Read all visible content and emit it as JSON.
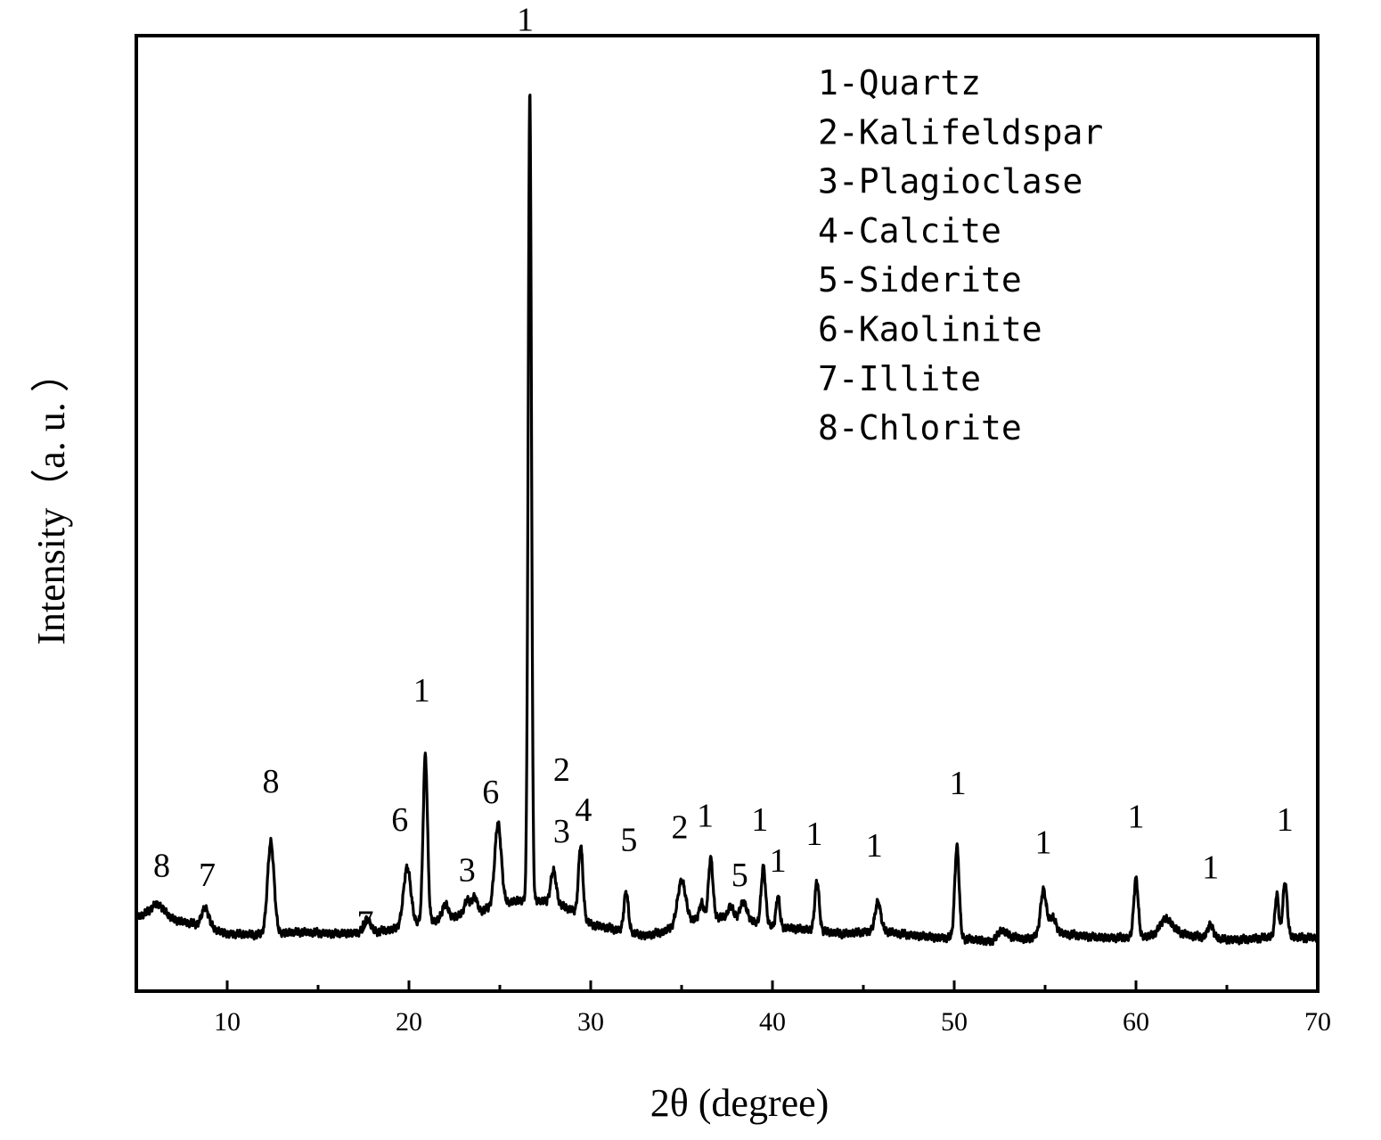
{
  "chart_data": {
    "type": "line",
    "title": "",
    "xlabel": "2θ (degree)",
    "ylabel": "Intensity（a. u. ）",
    "xlim": [
      5,
      70
    ],
    "ylim": [
      0,
      1000
    ],
    "x_ticks": [
      10,
      20,
      30,
      40,
      50,
      60,
      70
    ],
    "y_ticks_shown": false,
    "grid": false,
    "legend_position": "top-right",
    "legend": [
      "1-Quartz",
      "2-Kalifeldspar",
      "3-Plagioclase",
      "4-Calcite",
      "5-Siderite",
      "6-Kaolinite",
      "7-Illite",
      "8-Chlorite"
    ],
    "series": [
      {
        "name": "",
        "color": "#000000",
        "baseline": [
          [
            5,
            78
          ],
          [
            6,
            82
          ],
          [
            7,
            75
          ],
          [
            8,
            71
          ],
          [
            9,
            66
          ],
          [
            10,
            60
          ],
          [
            12,
            59
          ],
          [
            14,
            62
          ],
          [
            16,
            60
          ],
          [
            18,
            62
          ],
          [
            19,
            64
          ],
          [
            20,
            70
          ],
          [
            21,
            72
          ],
          [
            22,
            76
          ],
          [
            23,
            80
          ],
          [
            24,
            84
          ],
          [
            25,
            90
          ],
          [
            26,
            95
          ],
          [
            27,
            95
          ],
          [
            28,
            92
          ],
          [
            29,
            85
          ],
          [
            30,
            70
          ],
          [
            31,
            66
          ],
          [
            32,
            62
          ],
          [
            33,
            58
          ],
          [
            34,
            62
          ],
          [
            35,
            72
          ],
          [
            36,
            76
          ],
          [
            37,
            78
          ],
          [
            38,
            74
          ],
          [
            39,
            72
          ],
          [
            40,
            68
          ],
          [
            41,
            66
          ],
          [
            42,
            64
          ],
          [
            43,
            62
          ],
          [
            44,
            60
          ],
          [
            45,
            62
          ],
          [
            46,
            64
          ],
          [
            47,
            60
          ],
          [
            48,
            58
          ],
          [
            49,
            56
          ],
          [
            50,
            56
          ],
          [
            51,
            54
          ],
          [
            52,
            52
          ],
          [
            53,
            58
          ],
          [
            54,
            54
          ],
          [
            55,
            62
          ],
          [
            56,
            60
          ],
          [
            57,
            58
          ],
          [
            58,
            56
          ],
          [
            59,
            56
          ],
          [
            60,
            56
          ],
          [
            61,
            58
          ],
          [
            62,
            64
          ],
          [
            63,
            58
          ],
          [
            64,
            56
          ],
          [
            65,
            54
          ],
          [
            66,
            54
          ],
          [
            67,
            56
          ],
          [
            68,
            58
          ],
          [
            69,
            56
          ],
          [
            70,
            56
          ]
        ],
        "peaks": [
          {
            "x": 6.2,
            "height": 10,
            "width": 0.35
          },
          {
            "x": 8.8,
            "height": 20,
            "width": 0.2
          },
          {
            "x": 12.4,
            "height": 96,
            "width": 0.18
          },
          {
            "x": 17.7,
            "height": 14,
            "width": 0.18
          },
          {
            "x": 19.9,
            "height": 60,
            "width": 0.2
          },
          {
            "x": 20.9,
            "height": 175,
            "width": 0.12
          },
          {
            "x": 22.0,
            "height": 16,
            "width": 0.15
          },
          {
            "x": 23.2,
            "height": 14,
            "width": 0.15
          },
          {
            "x": 23.6,
            "height": 16,
            "width": 0.15
          },
          {
            "x": 24.9,
            "height": 86,
            "width": 0.18
          },
          {
            "x": 26.65,
            "height": 845,
            "width": 0.09
          },
          {
            "x": 27.95,
            "height": 34,
            "width": 0.15
          },
          {
            "x": 29.45,
            "height": 74,
            "width": 0.12
          },
          {
            "x": 31.95,
            "height": 42,
            "width": 0.12
          },
          {
            "x": 35.0,
            "height": 44,
            "width": 0.22
          },
          {
            "x": 36.1,
            "height": 16,
            "width": 0.12
          },
          {
            "x": 36.6,
            "height": 62,
            "width": 0.12
          },
          {
            "x": 37.7,
            "height": 14,
            "width": 0.15
          },
          {
            "x": 38.4,
            "height": 20,
            "width": 0.2
          },
          {
            "x": 39.5,
            "height": 60,
            "width": 0.12
          },
          {
            "x": 40.3,
            "height": 32,
            "width": 0.1
          },
          {
            "x": 42.45,
            "height": 52,
            "width": 0.12
          },
          {
            "x": 45.8,
            "height": 30,
            "width": 0.15
          },
          {
            "x": 50.15,
            "height": 96,
            "width": 0.12
          },
          {
            "x": 52.6,
            "height": 8,
            "width": 0.2
          },
          {
            "x": 54.9,
            "height": 44,
            "width": 0.15
          },
          {
            "x": 55.4,
            "height": 16,
            "width": 0.2
          },
          {
            "x": 60.0,
            "height": 62,
            "width": 0.12
          },
          {
            "x": 61.6,
            "height": 14,
            "width": 0.3
          },
          {
            "x": 64.1,
            "height": 14,
            "width": 0.15
          },
          {
            "x": 67.75,
            "height": 44,
            "width": 0.1
          },
          {
            "x": 68.2,
            "height": 56,
            "width": 0.12
          }
        ]
      }
    ],
    "annotations": [
      {
        "text": "8",
        "x": 6.4,
        "y": 120
      },
      {
        "text": "7",
        "x": 8.9,
        "y": 110
      },
      {
        "text": "8",
        "x": 12.4,
        "y": 208
      },
      {
        "text": "7",
        "x": 17.6,
        "y": 60
      },
      {
        "text": "6",
        "x": 19.5,
        "y": 168
      },
      {
        "text": "1",
        "x": 20.7,
        "y": 303
      },
      {
        "text": "3",
        "x": 23.2,
        "y": 115
      },
      {
        "text": "6",
        "x": 24.5,
        "y": 197
      },
      {
        "text": "1",
        "x": 26.4,
        "y": 1005
      },
      {
        "text": "2",
        "x": 28.4,
        "y": 220
      },
      {
        "text": "3",
        "x": 28.4,
        "y": 156
      },
      {
        "text": "4",
        "x": 29.6,
        "y": 178
      },
      {
        "text": "5",
        "x": 32.1,
        "y": 147
      },
      {
        "text": "2",
        "x": 34.9,
        "y": 160
      },
      {
        "text": "1",
        "x": 36.3,
        "y": 172
      },
      {
        "text": "1",
        "x": 39.3,
        "y": 168
      },
      {
        "text": "5",
        "x": 38.2,
        "y": 110
      },
      {
        "text": "1",
        "x": 40.3,
        "y": 125
      },
      {
        "text": "1",
        "x": 42.3,
        "y": 153
      },
      {
        "text": "1",
        "x": 45.6,
        "y": 141
      },
      {
        "text": "1",
        "x": 50.2,
        "y": 206
      },
      {
        "text": "1",
        "x": 54.9,
        "y": 144
      },
      {
        "text": "1",
        "x": 60.0,
        "y": 171
      },
      {
        "text": "1",
        "x": 64.1,
        "y": 118
      },
      {
        "text": "1",
        "x": 68.2,
        "y": 168
      }
    ]
  }
}
